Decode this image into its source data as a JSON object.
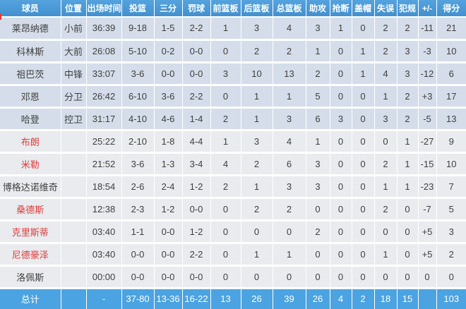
{
  "table": {
    "columns": [
      "球员",
      "位置",
      "出场时间",
      "投篮",
      "三分",
      "罚球",
      "前篮板",
      "后篮板",
      "总篮板",
      "助攻",
      "抢断",
      "盖帽",
      "失误",
      "犯规",
      "+/-",
      "得分"
    ],
    "rows": [
      {
        "name": "莱昂纳德",
        "red": false,
        "group": "starter",
        "cells": [
          "小前",
          "36:39",
          "9-18",
          "1-5",
          "2-2",
          "1",
          "3",
          "4",
          "3",
          "1",
          "0",
          "2",
          "2",
          "-11",
          "21"
        ]
      },
      {
        "name": "科林斯",
        "red": false,
        "group": "starter",
        "cells": [
          "大前",
          "26:08",
          "5-10",
          "0-2",
          "0-0",
          "0",
          "2",
          "2",
          "1",
          "0",
          "1",
          "2",
          "3",
          "-3",
          "10"
        ]
      },
      {
        "name": "祖巴茨",
        "red": false,
        "group": "starter",
        "cells": [
          "中锋",
          "33:07",
          "3-6",
          "0-0",
          "0-0",
          "3",
          "10",
          "13",
          "2",
          "0",
          "1",
          "4",
          "3",
          "-12",
          "6"
        ]
      },
      {
        "name": "邓恩",
        "red": false,
        "group": "starter",
        "cells": [
          "分卫",
          "26:42",
          "6-10",
          "3-6",
          "2-2",
          "0",
          "1",
          "1",
          "5",
          "0",
          "0",
          "1",
          "2",
          "+3",
          "17"
        ]
      },
      {
        "name": "哈登",
        "red": false,
        "group": "starter",
        "cells": [
          "控卫",
          "31:17",
          "4-10",
          "4-6",
          "1-4",
          "2",
          "1",
          "3",
          "6",
          "3",
          "0",
          "3",
          "2",
          "-5",
          "13"
        ]
      },
      {
        "name": "布朗",
        "red": true,
        "group": "bench",
        "cells": [
          "",
          "25:22",
          "2-10",
          "1-8",
          "4-4",
          "1",
          "3",
          "4",
          "1",
          "0",
          "0",
          "0",
          "1",
          "-27",
          "9"
        ]
      },
      {
        "name": "米勒",
        "red": true,
        "group": "bench",
        "cells": [
          "",
          "21:52",
          "3-6",
          "1-3",
          "3-4",
          "4",
          "2",
          "6",
          "3",
          "0",
          "0",
          "2",
          "1",
          "-15",
          "10"
        ]
      },
      {
        "name": "博格达诺维奇",
        "red": false,
        "group": "bench",
        "cells": [
          "",
          "18:54",
          "2-6",
          "2-4",
          "1-2",
          "2",
          "1",
          "3",
          "3",
          "0",
          "0",
          "1",
          "1",
          "-23",
          "7"
        ]
      },
      {
        "name": "桑德斯",
        "red": true,
        "group": "bench",
        "cells": [
          "",
          "12:38",
          "2-3",
          "1-2",
          "0-0",
          "0",
          "2",
          "2",
          "0",
          "0",
          "0",
          "2",
          "0",
          "-7",
          "5"
        ]
      },
      {
        "name": "克里斯蒂",
        "red": true,
        "group": "bench",
        "cells": [
          "",
          "03:40",
          "1-1",
          "0-0",
          "1-2",
          "0",
          "0",
          "0",
          "2",
          "0",
          "0",
          "0",
          "0",
          "+5",
          "3"
        ]
      },
      {
        "name": "尼德豪泽",
        "red": true,
        "group": "bench",
        "cells": [
          "",
          "03:40",
          "0-0",
          "0-0",
          "2-2",
          "0",
          "1",
          "1",
          "0",
          "0",
          "0",
          "1",
          "0",
          "+5",
          "2"
        ]
      },
      {
        "name": "洛佩斯",
        "red": false,
        "group": "bench",
        "cells": [
          "",
          "00:00",
          "0-0",
          "0-0",
          "0-0",
          "0",
          "0",
          "0",
          "0",
          "0",
          "0",
          "0",
          "0",
          "0",
          "0"
        ]
      }
    ],
    "total": {
      "label": "总计",
      "cells": [
        "",
        "-",
        "37-80",
        "13-36",
        "16-22",
        "13",
        "26",
        "39",
        "26",
        "4",
        "2",
        "18",
        "15",
        "",
        "103"
      ]
    }
  },
  "colors": {
    "header_bg": "#54a3de",
    "header_bg_dark": "#4390d0",
    "header_text": "#ffffff",
    "total_bg": "#4ba3e1",
    "starter_row_bg": "#d4dde9",
    "bench_row_bg": "#e9ebee",
    "red_name": "#e13c3c",
    "cell_text": "#3f3f3f"
  }
}
